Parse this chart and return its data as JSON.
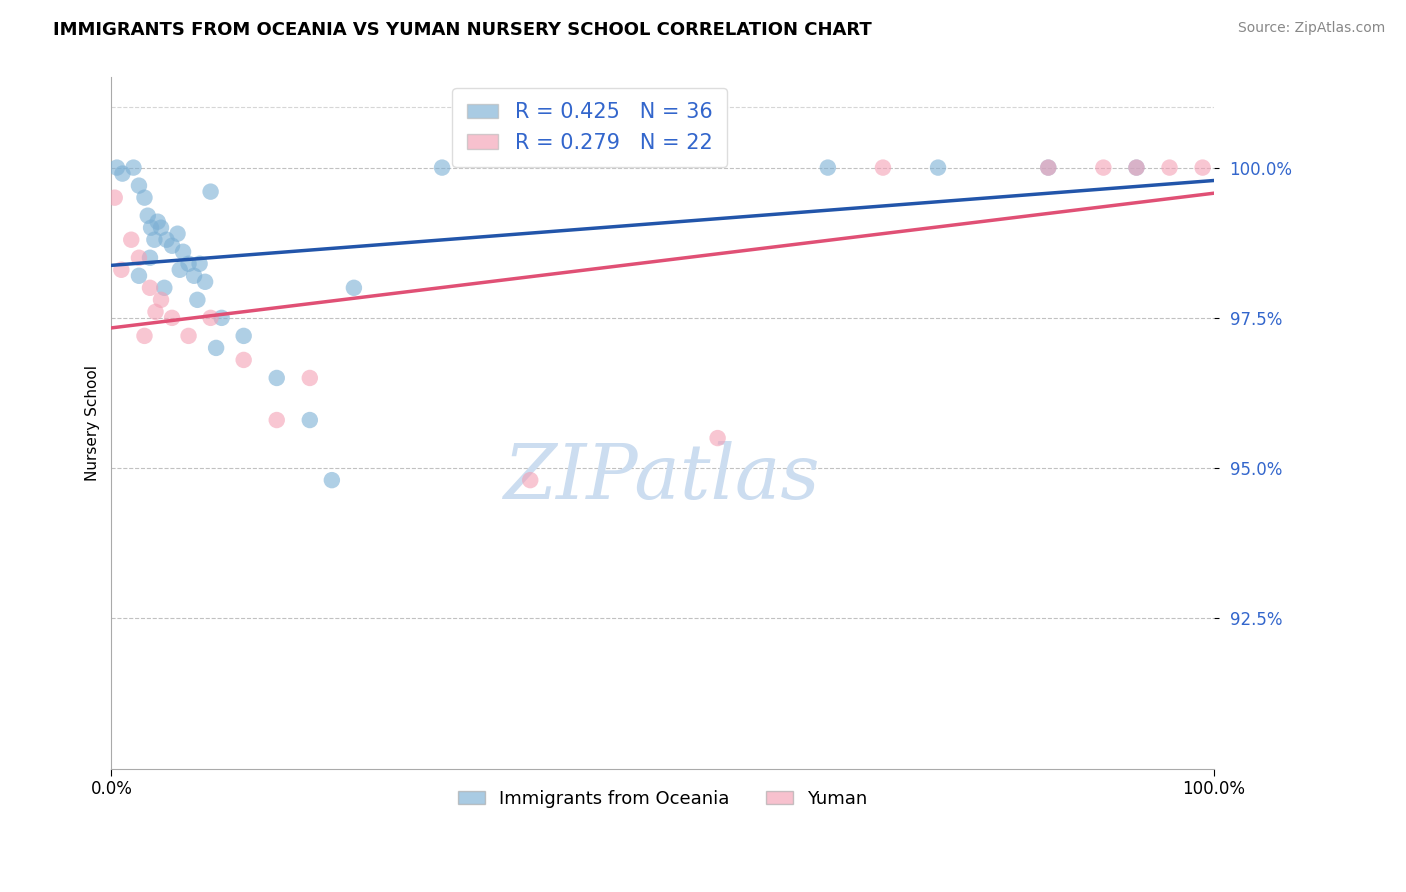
{
  "title": "IMMIGRANTS FROM OCEANIA VS YUMAN NURSERY SCHOOL CORRELATION CHART",
  "source": "Source: ZipAtlas.com",
  "ylabel": "Nursery School",
  "legend_label_blue": "Immigrants from Oceania",
  "legend_label_pink": "Yuman",
  "R_blue": 0.425,
  "N_blue": 36,
  "R_pink": 0.279,
  "N_pink": 22,
  "xlim": [
    0.0,
    100.0
  ],
  "ylim": [
    90.0,
    101.5
  ],
  "yticks": [
    92.5,
    95.0,
    97.5,
    100.0
  ],
  "ytick_labels": [
    "92.5%",
    "95.0%",
    "97.5%",
    "100.0%"
  ],
  "color_blue": "#7bafd4",
  "color_pink": "#f4a0b5",
  "line_color_blue": "#2255aa",
  "line_color_pink": "#e05075",
  "watermark_text": "ZIPatlas",
  "watermark_color": "#ccddf0",
  "marker_size": 140,
  "line_width": 2.5,
  "title_fontsize": 13,
  "source_fontsize": 10,
  "axis_label_fontsize": 11,
  "tick_fontsize": 12,
  "legend_fontsize": 15,
  "blue_x": [
    0.5,
    1.0,
    2.0,
    2.5,
    3.0,
    3.3,
    3.6,
    3.9,
    4.2,
    4.5,
    5.0,
    5.5,
    6.0,
    6.5,
    7.0,
    7.5,
    8.0,
    8.5,
    9.0,
    10.0,
    12.0,
    15.0,
    18.0,
    22.0,
    2.5,
    3.5,
    4.8,
    6.2,
    7.8,
    9.5,
    65.0,
    75.0,
    85.0,
    93.0,
    20.0,
    30.0
  ],
  "blue_y": [
    100.0,
    99.9,
    100.0,
    99.7,
    99.5,
    99.2,
    99.0,
    98.8,
    99.1,
    99.0,
    98.8,
    98.7,
    98.9,
    98.6,
    98.4,
    98.2,
    98.4,
    98.1,
    99.6,
    97.5,
    97.2,
    96.5,
    95.8,
    98.0,
    98.2,
    98.5,
    98.0,
    98.3,
    97.8,
    97.0,
    100.0,
    100.0,
    100.0,
    100.0,
    94.8,
    100.0
  ],
  "pink_x": [
    0.3,
    0.9,
    1.8,
    2.5,
    3.5,
    4.5,
    5.5,
    7.0,
    9.0,
    12.0,
    15.0,
    18.0,
    3.0,
    4.0,
    38.0,
    55.0,
    70.0,
    85.0,
    90.0,
    93.0,
    96.0,
    99.0
  ],
  "pink_y": [
    99.5,
    98.3,
    98.8,
    98.5,
    98.0,
    97.8,
    97.5,
    97.2,
    97.5,
    96.8,
    95.8,
    96.5,
    97.2,
    97.6,
    94.8,
    95.5,
    100.0,
    100.0,
    100.0,
    100.0,
    100.0,
    100.0
  ]
}
